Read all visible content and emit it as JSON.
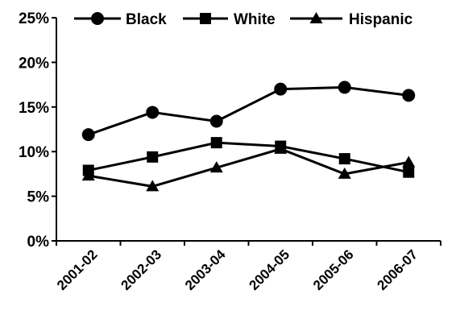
{
  "chart_data": {
    "type": "line",
    "title": "",
    "xlabel": "",
    "ylabel": "",
    "categories": [
      "2001-02",
      "2002-03",
      "2003-04",
      "2004-05",
      "2005-06",
      "2006-07"
    ],
    "ylim": [
      0,
      25
    ],
    "yticks": [
      0,
      5,
      10,
      15,
      20,
      25
    ],
    "ytick_labels": [
      "0%",
      "5%",
      "10%",
      "15%",
      "20%",
      "25%"
    ],
    "grid": false,
    "legend_position": "top",
    "series": [
      {
        "name": "Black",
        "marker": "circle",
        "color": "#000000",
        "values": [
          11.9,
          14.4,
          13.4,
          17.0,
          17.2,
          16.3
        ]
      },
      {
        "name": "White",
        "marker": "square",
        "color": "#000000",
        "values": [
          7.9,
          9.4,
          11.0,
          10.6,
          9.2,
          7.7
        ]
      },
      {
        "name": "Hispanic",
        "marker": "triangle",
        "color": "#000000",
        "values": [
          7.3,
          6.1,
          8.2,
          10.3,
          7.5,
          8.8
        ]
      }
    ]
  }
}
